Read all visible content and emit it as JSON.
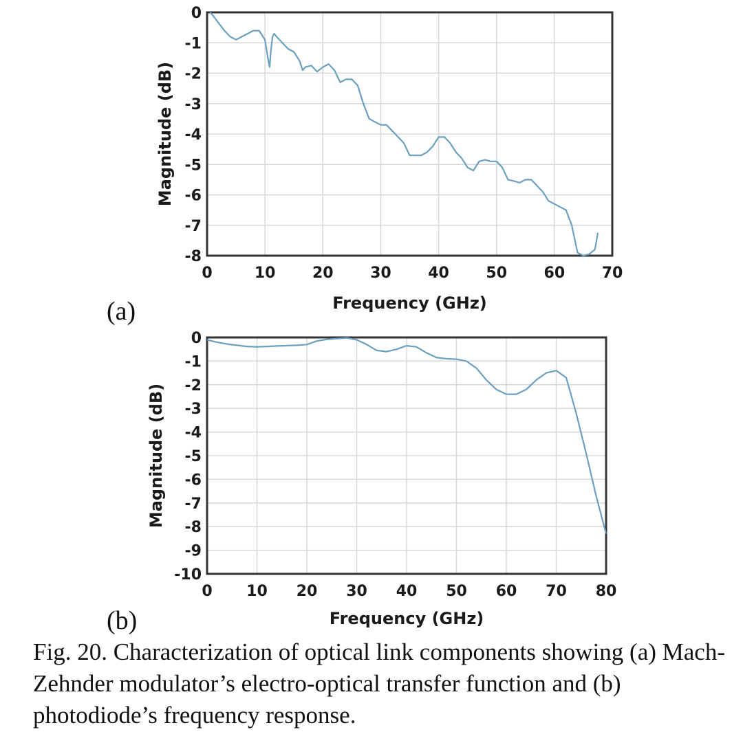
{
  "caption": "Fig. 20. Characterization of optical link components showing (a) Mach-Zehnder modulator’s electro-optical transfer function and (b) photodiode’s frequency response.",
  "chart_data": [
    {
      "panel": "(a)",
      "type": "line",
      "xlabel": "Frequency (GHz)",
      "ylabel": "Magnitude (dB)",
      "xlim": [
        0,
        70
      ],
      "ylim": [
        -8,
        0
      ],
      "xticks": [
        0,
        10,
        20,
        30,
        40,
        50,
        60,
        70
      ],
      "yticks": [
        0,
        -1,
        -2,
        -3,
        -4,
        -5,
        -6,
        -7,
        -8
      ],
      "grid": true,
      "line_color": "#6a9fc0",
      "series": [
        {
          "x": [
            0.5,
            1,
            2,
            3,
            4,
            5,
            6,
            7,
            8,
            9,
            10,
            10.5,
            10.8,
            11,
            11.3,
            11.6,
            12,
            13,
            14,
            15,
            16,
            16.5,
            17,
            18,
            19,
            20,
            21,
            22,
            23,
            24,
            25,
            26,
            27,
            28,
            29,
            30,
            31,
            32,
            33,
            34,
            35,
            36,
            37,
            38,
            39,
            40,
            41,
            42,
            43,
            44,
            45,
            46,
            47,
            48,
            49,
            50,
            51,
            52,
            53,
            54,
            55,
            56,
            57,
            58,
            59,
            60,
            61,
            62,
            63,
            64,
            65,
            66,
            67,
            67.5
          ],
          "y": [
            0,
            -0.1,
            -0.35,
            -0.6,
            -0.8,
            -0.9,
            -0.8,
            -0.7,
            -0.6,
            -0.6,
            -0.9,
            -1.5,
            -1.8,
            -1.3,
            -0.8,
            -0.7,
            -0.8,
            -1.0,
            -1.2,
            -1.3,
            -1.6,
            -1.9,
            -1.8,
            -1.75,
            -1.95,
            -1.8,
            -1.7,
            -1.9,
            -2.3,
            -2.2,
            -2.2,
            -2.4,
            -3.0,
            -3.5,
            -3.6,
            -3.7,
            -3.7,
            -3.9,
            -4.1,
            -4.3,
            -4.7,
            -4.7,
            -4.7,
            -4.6,
            -4.4,
            -4.1,
            -4.1,
            -4.3,
            -4.6,
            -4.8,
            -5.1,
            -5.2,
            -4.9,
            -4.85,
            -4.9,
            -4.9,
            -5.1,
            -5.5,
            -5.55,
            -5.6,
            -5.5,
            -5.5,
            -5.7,
            -5.9,
            -6.2,
            -6.3,
            -6.4,
            -6.5,
            -7.0,
            -7.9,
            -8.0,
            -7.95,
            -7.8,
            -7.25
          ]
        }
      ]
    },
    {
      "panel": "(b)",
      "type": "line",
      "xlabel": "Frequency (GHz)",
      "ylabel": "Magnitude (dB)",
      "xlim": [
        0,
        80
      ],
      "ylim": [
        -10,
        0
      ],
      "xticks": [
        0,
        10,
        20,
        30,
        40,
        50,
        60,
        70,
        80
      ],
      "yticks": [
        0,
        -1,
        -2,
        -3,
        -4,
        -5,
        -6,
        -7,
        -8,
        -9,
        -10
      ],
      "grid": true,
      "line_color": "#6a9fc0",
      "series": [
        {
          "x": [
            0,
            2,
            4,
            6,
            8,
            10,
            12,
            14,
            16,
            18,
            20,
            22,
            24,
            26,
            28,
            30,
            32,
            34,
            36,
            38,
            40,
            42,
            44,
            46,
            48,
            50,
            52,
            54,
            56,
            58,
            60,
            62,
            64,
            66,
            68,
            70,
            72,
            74,
            76,
            78,
            80
          ],
          "y": [
            -0.1,
            -0.2,
            -0.28,
            -0.33,
            -0.38,
            -0.4,
            -0.38,
            -0.36,
            -0.35,
            -0.33,
            -0.3,
            -0.15,
            -0.08,
            -0.05,
            -0.02,
            -0.1,
            -0.3,
            -0.55,
            -0.6,
            -0.5,
            -0.35,
            -0.4,
            -0.65,
            -0.85,
            -0.9,
            -0.92,
            -1.0,
            -1.3,
            -1.8,
            -2.2,
            -2.4,
            -2.4,
            -2.2,
            -1.8,
            -1.5,
            -1.4,
            -1.7,
            -3.2,
            -4.9,
            -6.7,
            -8.3
          ]
        }
      ]
    }
  ]
}
